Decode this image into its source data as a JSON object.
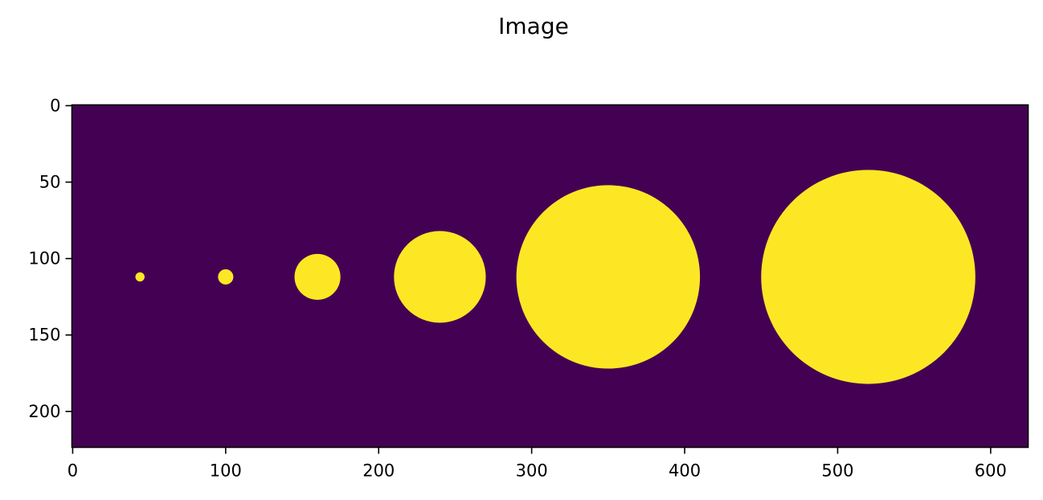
{
  "chart_data": {
    "type": "image",
    "title": "Image",
    "xlim": [
      -0.5,
      624.5
    ],
    "ylim": [
      223.5,
      -0.5
    ],
    "y_inverted": true,
    "xticks": [
      0,
      100,
      200,
      300,
      400,
      500,
      600
    ],
    "yticks": [
      0,
      50,
      100,
      150,
      200
    ],
    "xtick_labels": [
      "0",
      "100",
      "200",
      "300",
      "400",
      "500",
      "600"
    ],
    "ytick_labels": [
      "0",
      "50",
      "100",
      "150",
      "200"
    ],
    "image_size": {
      "width": 625,
      "height": 224
    },
    "colormap": "viridis",
    "background_color": "#440154",
    "foreground_color": "#fde725",
    "circles": [
      {
        "cx": 44,
        "cy": 112,
        "r": 3
      },
      {
        "cx": 100,
        "cy": 112,
        "r": 5
      },
      {
        "cx": 160,
        "cy": 112,
        "r": 15
      },
      {
        "cx": 240,
        "cy": 112,
        "r": 30
      },
      {
        "cx": 350,
        "cy": 112,
        "r": 60
      },
      {
        "cx": 520,
        "cy": 112,
        "r": 70
      }
    ],
    "grid": false
  }
}
